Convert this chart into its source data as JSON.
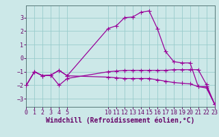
{
  "background_color": "#cce8e8",
  "line_color": "#990099",
  "grid_color": "#99cccc",
  "line1_x": [
    0,
    1,
    2,
    3,
    4,
    5,
    10,
    11,
    12,
    13,
    14,
    15,
    16,
    17,
    18,
    19,
    20,
    21,
    22,
    23
  ],
  "line1_y": [
    -2.0,
    -1.0,
    -1.3,
    -1.25,
    -0.9,
    -1.3,
    2.2,
    2.4,
    3.0,
    3.05,
    3.4,
    3.5,
    2.2,
    0.5,
    -0.25,
    -0.35,
    -0.35,
    -2.1,
    -2.1,
    -3.4
  ],
  "line2_x": [
    0,
    1,
    2,
    3,
    4,
    5,
    10,
    11,
    12,
    13,
    14,
    15,
    16,
    17,
    18,
    19,
    20,
    21,
    22,
    23
  ],
  "line2_y": [
    -2.0,
    -1.0,
    -1.3,
    -1.25,
    -2.0,
    -1.5,
    -1.0,
    -0.95,
    -0.9,
    -0.9,
    -0.9,
    -0.9,
    -0.9,
    -0.9,
    -0.85,
    -0.85,
    -0.85,
    -0.85,
    -1.95,
    -3.4
  ],
  "line3_x": [
    0,
    1,
    2,
    3,
    4,
    5,
    10,
    11,
    12,
    13,
    14,
    15,
    16,
    17,
    18,
    19,
    20,
    21,
    22,
    23
  ],
  "line3_y": [
    -2.0,
    -1.0,
    -1.3,
    -1.25,
    -0.9,
    -1.3,
    -1.4,
    -1.45,
    -1.5,
    -1.5,
    -1.5,
    -1.5,
    -1.6,
    -1.7,
    -1.8,
    -1.85,
    -1.9,
    -2.1,
    -2.2,
    -3.4
  ],
  "xlim": [
    0,
    23
  ],
  "ylim": [
    -3.6,
    3.9
  ],
  "yticks": [
    -3,
    -2,
    -1,
    0,
    1,
    2,
    3
  ],
  "xtick_positions": [
    0,
    1,
    2,
    3,
    4,
    5,
    10,
    11,
    12,
    13,
    14,
    15,
    16,
    17,
    18,
    19,
    20,
    21,
    22,
    23
  ],
  "xtick_labels": [
    "0",
    "1",
    "2",
    "3",
    "4",
    "5",
    "10",
    "11",
    "12",
    "13",
    "14",
    "15",
    "16",
    "17",
    "18",
    "19",
    "20",
    "21",
    "22",
    "23"
  ],
  "xlabel": "Windchill (Refroidissement éolien,°C)",
  "xlabel_fontsize": 7,
  "tick_fontsize": 6,
  "marker": "+",
  "markersize": 4,
  "linewidth": 0.9,
  "spine_color": "#557777"
}
